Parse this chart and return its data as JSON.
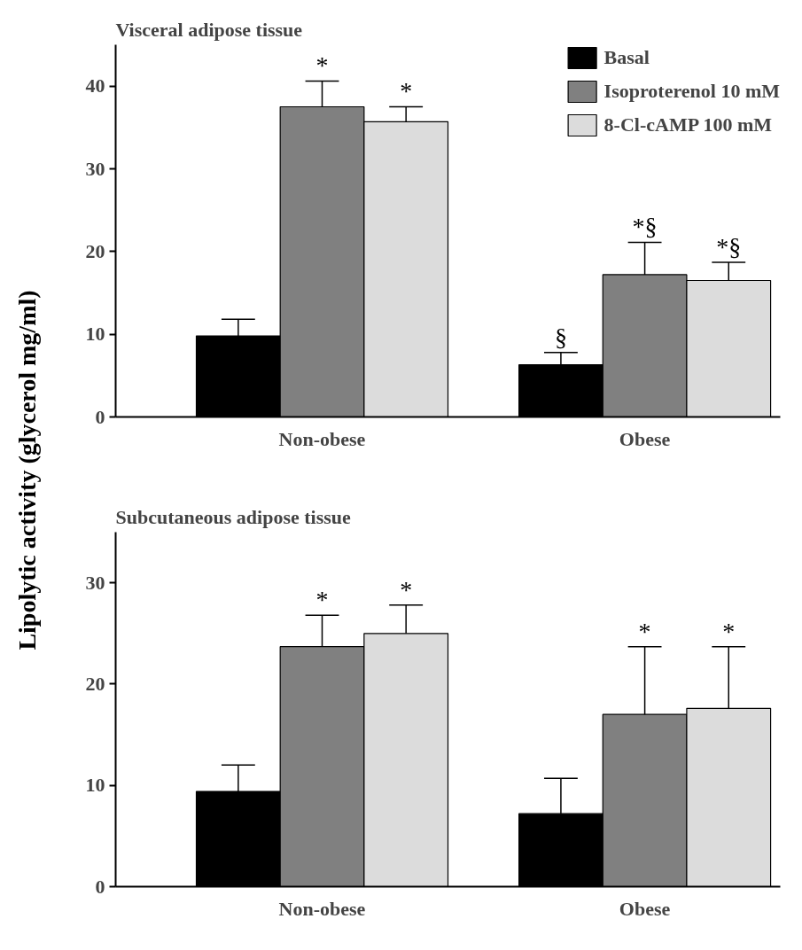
{
  "chart_data": [
    {
      "type": "bar",
      "title": "Visceral adipose tissue",
      "ylabel": "Lipolytic activity (glycerol mg/ml)",
      "categories": [
        "Non-obese",
        "Obese"
      ],
      "ylim": [
        0,
        45
      ],
      "yticks": [
        0,
        10,
        20,
        30,
        40
      ],
      "grid": false,
      "legend": "top right",
      "series": [
        {
          "name": "Basal",
          "color": "#000000",
          "values": [
            9.8,
            6.3
          ],
          "errors": [
            [
              9.8,
              11.8
            ],
            [
              6.3,
              7.8
            ]
          ],
          "value_labels": [
            null,
            "§"
          ]
        },
        {
          "name": "Isoproterenol 10 mM",
          "color": "#808080",
          "values": [
            37.5,
            17.2
          ],
          "errors": [
            [
              37.5,
              40.6
            ],
            [
              17.2,
              21.1
            ]
          ],
          "value_labels": [
            "*",
            "*§"
          ]
        },
        {
          "name": "8-Cl-cAMP 100 mM",
          "color": "#dcdcdc",
          "values": [
            35.7,
            16.5
          ],
          "errors": [
            [
              35.7,
              37.5
            ],
            [
              16.5,
              18.7
            ]
          ],
          "value_labels": [
            "*",
            "*§"
          ]
        }
      ]
    },
    {
      "type": "bar",
      "title": "Subcutaneous adipose tissue",
      "categories": [
        "Non-obese",
        "Obese"
      ],
      "ylim": [
        0,
        35
      ],
      "yticks": [
        0,
        10,
        20,
        30
      ],
      "grid": false,
      "series": [
        {
          "color": "#000000",
          "values": [
            9.4,
            7.2
          ],
          "errors": [
            [
              9.4,
              12.0
            ],
            [
              7.2,
              10.7
            ]
          ],
          "value_labels": [
            null,
            null
          ]
        },
        {
          "color": "#808080",
          "values": [
            23.7,
            17.0
          ],
          "errors": [
            [
              23.7,
              26.8
            ],
            [
              17.0,
              23.7
            ]
          ],
          "value_labels": [
            "*",
            "*"
          ]
        },
        {
          "color": "#dcdcdc",
          "values": [
            25.0,
            17.6
          ],
          "errors": [
            [
              25.0,
              27.8
            ],
            [
              17.6,
              23.7
            ]
          ],
          "value_labels": [
            "*",
            "*"
          ]
        }
      ]
    }
  ]
}
